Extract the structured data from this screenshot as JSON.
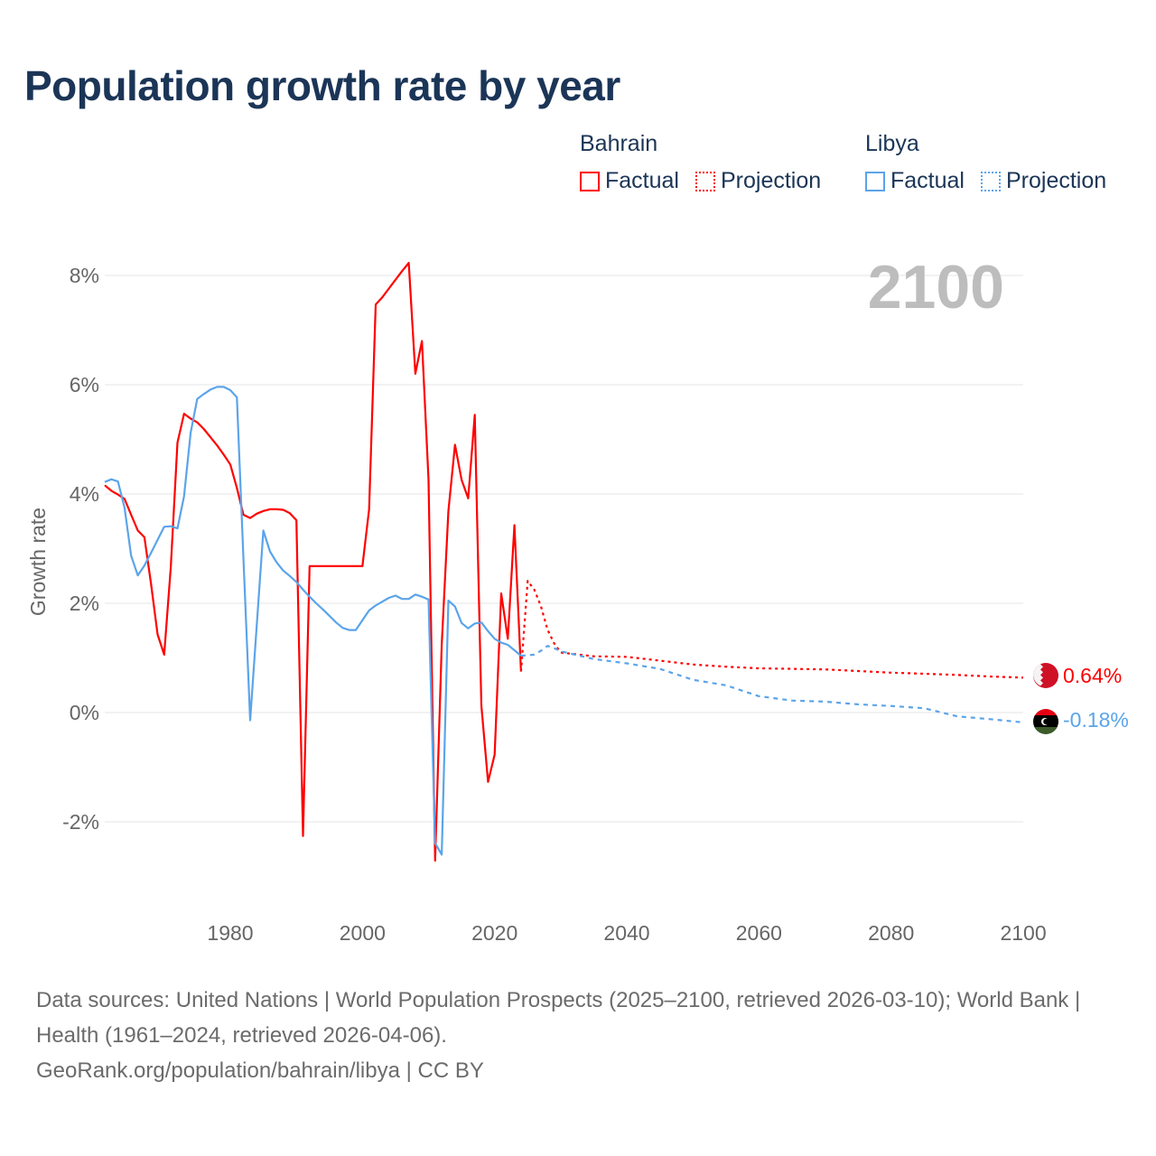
{
  "title": "Population growth rate by year",
  "legend": [
    {
      "name": "Bahrain",
      "color": "#ff0000",
      "factual_label": "Factual",
      "projection_label": "Projection"
    },
    {
      "name": "Libya",
      "color": "#5ba4ea",
      "factual_label": "Factual",
      "projection_label": "Projection"
    }
  ],
  "year_overlay": "2100",
  "end_labels": {
    "bahrain": "0.64%",
    "libya": "-0.18%"
  },
  "source": {
    "line1": "Data sources: United Nations | World Population Prospects (2025–2100, retrieved 2026-03-10); World Bank | Health (1961–2024, retrieved 2026-04-06).",
    "line2": "GeoRank.org/population/bahrain/libya | CC BY"
  },
  "chart_data": {
    "type": "line",
    "title": "Population growth rate by year",
    "xlabel": "",
    "ylabel": "Growth rate",
    "xlim": [
      1961,
      2100
    ],
    "ylim": [
      -3.5,
      8.5
    ],
    "xticks": [
      "1980",
      "2000",
      "2020",
      "2040",
      "2060",
      "2080",
      "2100"
    ],
    "yticks": [
      "8%",
      "6%",
      "4%",
      "2%",
      "0%",
      "-2%"
    ],
    "ytick_values": [
      8,
      6,
      4,
      2,
      0,
      -2
    ],
    "xtick_values": [
      1980,
      2000,
      2020,
      2040,
      2060,
      2080,
      2100
    ],
    "grid": true,
    "legend_position": "top-right",
    "series": [
      {
        "name": "Bahrain Factual",
        "color": "#ff0000",
        "style": "solid",
        "x": [
          1961,
          1962,
          1963,
          1964,
          1965,
          1966,
          1967,
          1968,
          1969,
          1970,
          1971,
          1972,
          1973,
          1974,
          1975,
          1976,
          1977,
          1978,
          1979,
          1980,
          1981,
          1982,
          1983,
          1984,
          1985,
          1986,
          1987,
          1988,
          1989,
          1990,
          1991,
          1992,
          1993,
          1994,
          1995,
          1996,
          1997,
          1998,
          1999,
          2000,
          2001,
          2002,
          2003,
          2004,
          2005,
          2006,
          2007,
          2008,
          2009,
          2010,
          2011,
          2012,
          2013,
          2014,
          2015,
          2016,
          2017,
          2018,
          2019,
          2020,
          2021,
          2022,
          2023,
          2024
        ],
        "y": [
          4.16,
          4.06,
          3.99,
          3.91,
          3.62,
          3.33,
          3.21,
          2.36,
          1.43,
          1.06,
          2.66,
          4.94,
          5.47,
          5.38,
          5.31,
          5.19,
          5.04,
          4.89,
          4.72,
          4.54,
          4.11,
          3.62,
          3.56,
          3.64,
          3.69,
          3.72,
          3.72,
          3.71,
          3.65,
          3.52,
          -2.26,
          2.68,
          2.68,
          2.68,
          2.68,
          2.68,
          2.68,
          2.68,
          2.68,
          2.68,
          3.72,
          7.47,
          7.6,
          7.76,
          7.92,
          8.08,
          8.23,
          6.2,
          6.8,
          4.26,
          -2.71,
          1.24,
          3.69,
          4.9,
          4.26,
          3.92,
          5.45,
          0.13,
          -1.27,
          -0.77,
          2.18,
          1.35,
          3.43,
          0.75
        ]
      },
      {
        "name": "Bahrain Projection",
        "color": "#ff0000",
        "style": "dotted",
        "x": [
          2024,
          2025,
          2026,
          2027,
          2028,
          2029,
          2030,
          2035,
          2040,
          2045,
          2050,
          2055,
          2060,
          2065,
          2070,
          2075,
          2080,
          2085,
          2090,
          2095,
          2100
        ],
        "y": [
          0.75,
          2.41,
          2.25,
          1.95,
          1.52,
          1.27,
          1.1,
          1.03,
          1.02,
          0.95,
          0.88,
          0.84,
          0.81,
          0.8,
          0.79,
          0.76,
          0.73,
          0.71,
          0.69,
          0.66,
          0.64
        ]
      },
      {
        "name": "Libya Factual",
        "color": "#5ba4ea",
        "style": "solid",
        "x": [
          1961,
          1962,
          1963,
          1964,
          1965,
          1966,
          1967,
          1968,
          1969,
          1970,
          1971,
          1972,
          1973,
          1974,
          1975,
          1976,
          1977,
          1978,
          1979,
          1980,
          1981,
          1982,
          1983,
          1984,
          1985,
          1986,
          1987,
          1988,
          1989,
          1990,
          1991,
          1992,
          1993,
          1994,
          1995,
          1996,
          1997,
          1998,
          1999,
          2000,
          2001,
          2002,
          2003,
          2004,
          2005,
          2006,
          2007,
          2008,
          2009,
          2010,
          2011,
          2012,
          2013,
          2014,
          2015,
          2016,
          2017,
          2018,
          2019,
          2020,
          2021,
          2022,
          2023,
          2024
        ],
        "y": [
          4.22,
          4.27,
          4.23,
          3.75,
          2.87,
          2.51,
          2.69,
          2.92,
          3.16,
          3.4,
          3.41,
          3.37,
          3.96,
          5.12,
          5.74,
          5.83,
          5.91,
          5.96,
          5.96,
          5.9,
          5.77,
          2.8,
          -0.14,
          1.6,
          3.33,
          2.95,
          2.75,
          2.6,
          2.5,
          2.39,
          2.25,
          2.12,
          2.0,
          1.89,
          1.77,
          1.65,
          1.55,
          1.51,
          1.51,
          1.69,
          1.87,
          1.96,
          2.03,
          2.1,
          2.14,
          2.08,
          2.08,
          2.16,
          2.12,
          2.07,
          -2.39,
          -2.6,
          2.05,
          1.94,
          1.64,
          1.54,
          1.63,
          1.65,
          1.49,
          1.35,
          1.28,
          1.24,
          1.14,
          1.04
        ]
      },
      {
        "name": "Libya Projection",
        "color": "#5ba4ea",
        "style": "dotted",
        "x": [
          2024,
          2025,
          2026,
          2027,
          2028,
          2029,
          2030,
          2035,
          2040,
          2045,
          2050,
          2055,
          2060,
          2065,
          2070,
          2075,
          2080,
          2085,
          2090,
          2095,
          2100
        ],
        "y": [
          1.04,
          1.05,
          1.06,
          1.13,
          1.22,
          1.18,
          1.12,
          0.98,
          0.9,
          0.8,
          0.6,
          0.5,
          0.3,
          0.22,
          0.2,
          0.15,
          0.12,
          0.08,
          -0.07,
          -0.12,
          -0.18
        ]
      }
    ]
  }
}
